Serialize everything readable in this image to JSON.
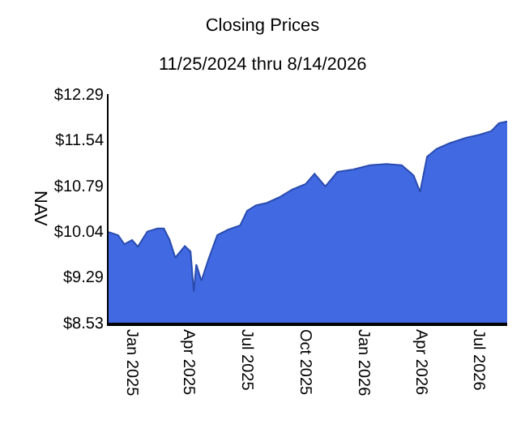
{
  "chart_data": {
    "type": "area",
    "title": "Closing Prices",
    "subtitle": "11/25/2024 thru 8/14/2026",
    "ylabel": "NAV",
    "x": [
      "2024-11-25",
      "2024-12-10",
      "2024-12-20",
      "2025-01-01",
      "2025-01-10",
      "2025-01-25",
      "2025-02-10",
      "2025-02-20",
      "2025-03-01",
      "2025-03-10",
      "2025-03-25",
      "2025-04-03",
      "2025-04-08",
      "2025-04-12",
      "2025-04-20",
      "2025-05-01",
      "2025-05-15",
      "2025-06-01",
      "2025-06-20",
      "2025-07-01",
      "2025-07-15",
      "2025-08-01",
      "2025-08-20",
      "2025-09-10",
      "2025-10-01",
      "2025-10-15",
      "2025-11-01",
      "2025-11-20",
      "2025-12-15",
      "2026-01-10",
      "2026-02-05",
      "2026-03-01",
      "2026-03-20",
      "2026-03-30",
      "2026-04-10",
      "2026-04-25",
      "2026-05-15",
      "2026-06-10",
      "2026-07-01",
      "2026-07-20",
      "2026-08-01",
      "2026-08-14"
    ],
    "series": [
      {
        "color": "#4169e1",
        "values": [
          10.02,
          9.97,
          9.82,
          9.89,
          9.78,
          10.03,
          10.08,
          10.08,
          9.89,
          9.6,
          9.79,
          9.7,
          9.04,
          9.49,
          9.22,
          9.57,
          9.97,
          10.06,
          10.13,
          10.37,
          10.46,
          10.5,
          10.59,
          10.72,
          10.81,
          10.98,
          10.77,
          11.01,
          11.05,
          11.12,
          11.14,
          11.12,
          10.95,
          10.68,
          11.26,
          11.39,
          11.48,
          11.57,
          11.62,
          11.68,
          11.81,
          11.84
        ]
      }
    ],
    "xlim": [
      "2024-11-25",
      "2026-08-14"
    ],
    "xticks": [
      {
        "value": "2025-01-01",
        "label": "Jan 2025"
      },
      {
        "value": "2025-04-01",
        "label": "Apr 2025"
      },
      {
        "value": "2025-07-01",
        "label": "Jul 2025"
      },
      {
        "value": "2025-10-01",
        "label": "Oct 2025"
      },
      {
        "value": "2026-01-01",
        "label": "Jan 2026"
      },
      {
        "value": "2026-04-01",
        "label": "Apr 2026"
      },
      {
        "value": "2026-07-01",
        "label": "Jul 2026"
      }
    ],
    "ylim": [
      8.53,
      12.29
    ],
    "yticks": [
      {
        "value": 8.53,
        "label": "$8.53"
      },
      {
        "value": 9.29,
        "label": "$9.29"
      },
      {
        "value": 10.04,
        "label": "$10.04"
      },
      {
        "value": 10.79,
        "label": "$10.79"
      },
      {
        "value": 11.54,
        "label": "$11.54"
      },
      {
        "value": 12.29,
        "label": "$12.29"
      }
    ]
  }
}
